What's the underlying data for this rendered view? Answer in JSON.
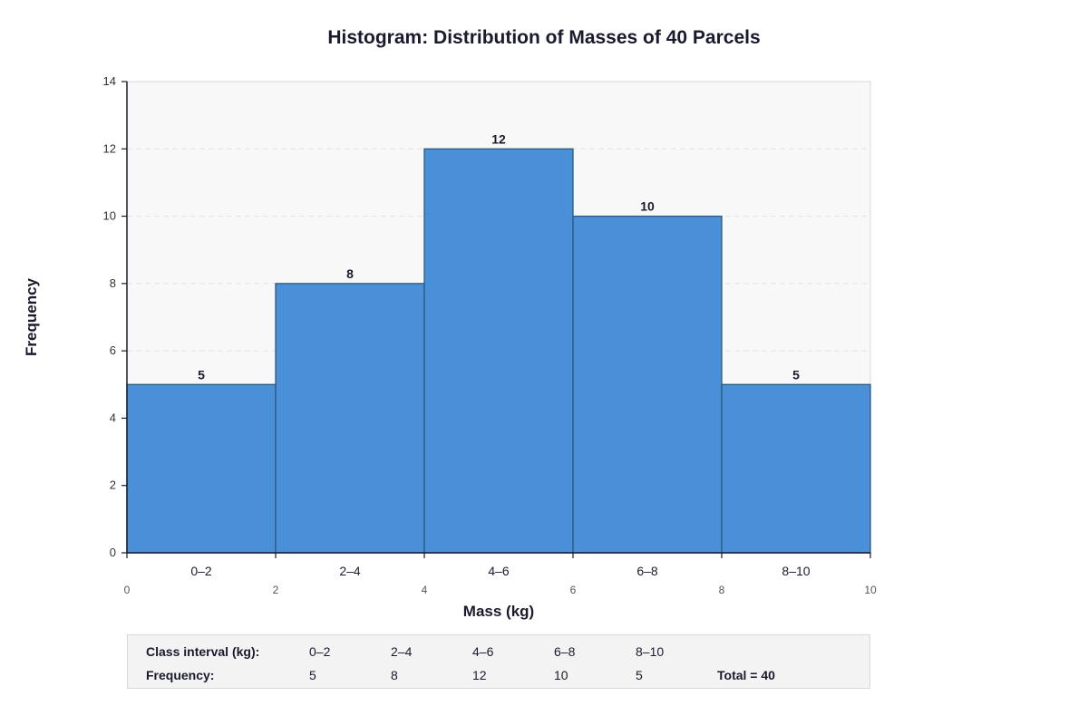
{
  "chart_data": {
    "type": "bar",
    "subtype": "histogram",
    "title": "Histogram: Distribution of Masses of 40 Parcels",
    "xlabel": "Mass (kg)",
    "ylabel": "Frequency",
    "categories": [
      "0–2",
      "2–4",
      "4–6",
      "6–8",
      "8–10"
    ],
    "bin_edges": [
      0,
      2,
      4,
      6,
      8,
      10
    ],
    "values": [
      5,
      8,
      12,
      10,
      5
    ],
    "data_labels": [
      "5",
      "8",
      "12",
      "10",
      "5"
    ],
    "ylim": [
      0,
      14
    ],
    "xlim": [
      0,
      10
    ],
    "y_ticks": [
      "0",
      "2",
      "4",
      "6",
      "8",
      "10",
      "12",
      "14"
    ],
    "x_ticks": [
      "0",
      "2",
      "4",
      "6",
      "8",
      "10"
    ],
    "grid": true,
    "bar_color": "#4a90d9",
    "bar_edge_color": "#2c5a7a",
    "plot_background": "#f8f8f8"
  },
  "table": {
    "interval_label": "Class interval (kg):",
    "frequency_label": "Frequency:",
    "intervals": [
      "0–2",
      "2–4",
      "4–6",
      "6–8",
      "8–10"
    ],
    "frequencies": [
      "5",
      "8",
      "12",
      "10",
      "5"
    ],
    "total": "Total = 40"
  }
}
